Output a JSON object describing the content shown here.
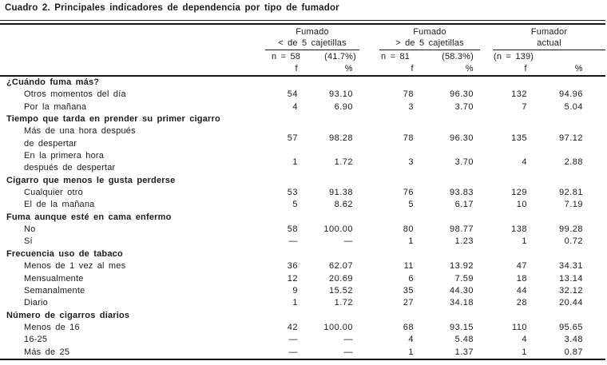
{
  "page": {
    "background": "#ffffff",
    "ink": "#1b1b1b",
    "rule_color": "#161616"
  },
  "title": "Cuadro 2. Principales indicadores de dependencia por tipo de fumador",
  "table": {
    "column_groups": [
      {
        "name": "Fumado < de 5 cajetillas",
        "line1": "Fumado",
        "line2": "< de 5 cajetillas",
        "n_label": "n = 58",
        "pct_label": "(41.7%)"
      },
      {
        "name": "Fumado > de 5 cajetillas",
        "line1": "Fumado",
        "line2": "> de 5 cajetillas",
        "n_label": "n = 81",
        "pct_label": "(58.3%)"
      },
      {
        "name": "Fumador actual",
        "line1": "Fumador",
        "line2": "actual",
        "n_label": "(n = 139)",
        "pct_label": ""
      }
    ],
    "subheaders": [
      "f",
      "%",
      "f",
      "%",
      "f",
      "%"
    ],
    "sections": [
      {
        "header": "¿Cuándo fuma más?",
        "rows": [
          {
            "label_lines": [
              "Otros momentos del día"
            ],
            "values": [
              "54",
              "93.10",
              "78",
              "96.30",
              "132",
              "94.96"
            ]
          },
          {
            "label_lines": [
              "Por la mañana"
            ],
            "values": [
              "4",
              "6.90",
              "3",
              "3.70",
              "7",
              "5.04"
            ]
          }
        ]
      },
      {
        "header": "Tiempo que tarda en prender su primer cigarro",
        "rows": [
          {
            "label_lines": [
              "Más de una hora después",
              "de despertar"
            ],
            "values": [
              "57",
              "98.28",
              "78",
              "96.30",
              "135",
              "97.12"
            ]
          },
          {
            "label_lines": [
              "En la primera hora",
              "después de despertar"
            ],
            "values": [
              "1",
              "1.72",
              "3",
              "3.70",
              "4",
              "2.88"
            ]
          }
        ]
      },
      {
        "header": "Cigarro que menos le gusta perderse",
        "rows": [
          {
            "label_lines": [
              "Cualquier otro"
            ],
            "values": [
              "53",
              "91.38",
              "76",
              "93.83",
              "129",
              "92.81"
            ]
          },
          {
            "label_lines": [
              "El de la mañana"
            ],
            "values": [
              "5",
              "8.62",
              "5",
              "6.17",
              "10",
              "7.19"
            ]
          }
        ]
      },
      {
        "header": "Fuma aunque esté en cama enfermo",
        "rows": [
          {
            "label_lines": [
              "No"
            ],
            "values": [
              "58",
              "100.00",
              "80",
              "98.77",
              "138",
              "99.28"
            ]
          },
          {
            "label_lines": [
              "Sí"
            ],
            "values": [
              "—",
              "—",
              "1",
              "1.23",
              "1",
              "0.72"
            ]
          }
        ]
      },
      {
        "header": "Frecuencia uso de tabaco",
        "rows": [
          {
            "label_lines": [
              "Menos de 1 vez al mes"
            ],
            "values": [
              "36",
              "62.07",
              "11",
              "13.92",
              "47",
              "34.31"
            ]
          },
          {
            "label_lines": [
              "Mensualmente"
            ],
            "values": [
              "12",
              "20.69",
              "6",
              "7.59",
              "18",
              "13.14"
            ]
          },
          {
            "label_lines": [
              "Semanalmente"
            ],
            "values": [
              "9",
              "15.52",
              "35",
              "44.30",
              "44",
              "32.12"
            ]
          },
          {
            "label_lines": [
              "Diario"
            ],
            "values": [
              "1",
              "1.72",
              "27",
              "34.18",
              "28",
              "20.44"
            ]
          }
        ]
      },
      {
        "header": "Número de cigarros diarios",
        "rows": [
          {
            "label_lines": [
              "Menos de 16"
            ],
            "values": [
              "42",
              "100.00",
              "68",
              "93.15",
              "110",
              "95.65"
            ]
          },
          {
            "label_lines": [
              "16-25"
            ],
            "values": [
              "—",
              "—",
              "4",
              "5.48",
              "4",
              "3.48"
            ]
          },
          {
            "label_lines": [
              "Más de 25"
            ],
            "values": [
              "—",
              "—",
              "1",
              "1.37",
              "1",
              "0.87"
            ]
          }
        ]
      }
    ]
  }
}
